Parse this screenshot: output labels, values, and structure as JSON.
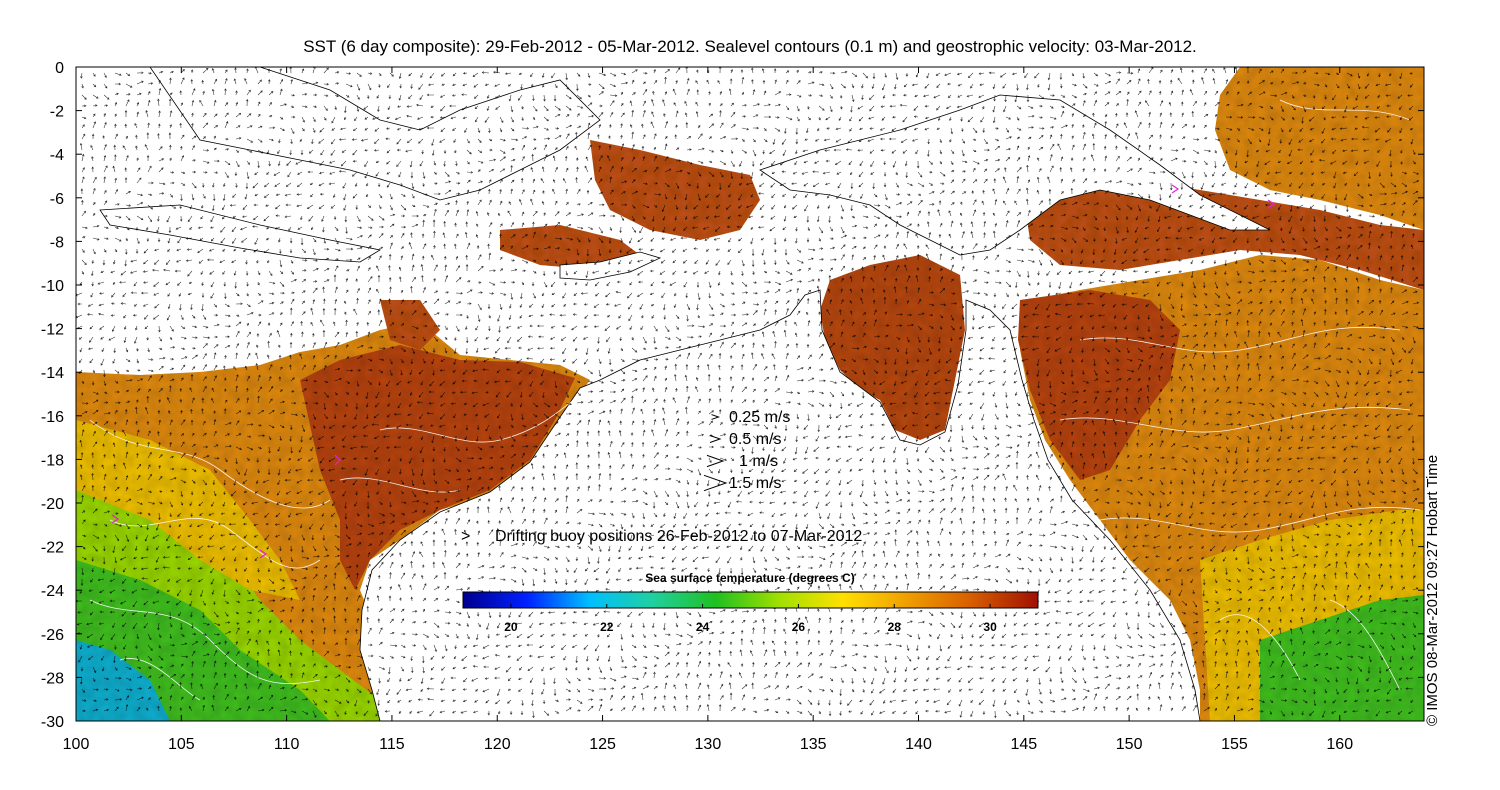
{
  "title": "SST (6 day composite): 29-Feb-2012 - 05-Mar-2012. Sealevel contours (0.1 m) and geostrophic velocity: 03-Mar-2012.",
  "x_axis": {
    "min": 100,
    "max": 164,
    "ticks": [
      100,
      105,
      110,
      115,
      120,
      125,
      130,
      135,
      140,
      145,
      150,
      155,
      160
    ]
  },
  "y_axis": {
    "min": -30,
    "max": 0,
    "ticks": [
      0,
      -2,
      -4,
      -6,
      -8,
      -10,
      -12,
      -14,
      -16,
      -18,
      -20,
      -22,
      -24,
      -26,
      -28,
      -30
    ]
  },
  "velocity_legend": [
    {
      "label": "0.25 m/s",
      "speed": 0.25
    },
    {
      "label": "0.5 m/s",
      "speed": 0.5
    },
    {
      "label": "1 m/s",
      "speed": 1.0
    },
    {
      "label": "1.5 m/s",
      "speed": 1.5
    }
  ],
  "buoy_legend": {
    "marker": ">",
    "label": "Drifting buoy positions 26-Feb-2012 to 07-Mar-2012",
    "color": "#e020e0"
  },
  "colorbar": {
    "title": "Sea surface temperature (degrees C)",
    "min": 19,
    "max": 31,
    "ticks": [
      20,
      22,
      24,
      26,
      28,
      30
    ],
    "colors": [
      "#00008f",
      "#0020ff",
      "#00bfff",
      "#20d0a0",
      "#20c020",
      "#a0e000",
      "#ffe000",
      "#f0a000",
      "#d86000",
      "#a01000"
    ]
  },
  "copyright": "© IMOS 08-Mar-2012 09:27 Hobart Time",
  "colors": {
    "land": "#ffffff",
    "coast": "#000000",
    "contour": "#ffffff",
    "arrow": "#000000"
  }
}
